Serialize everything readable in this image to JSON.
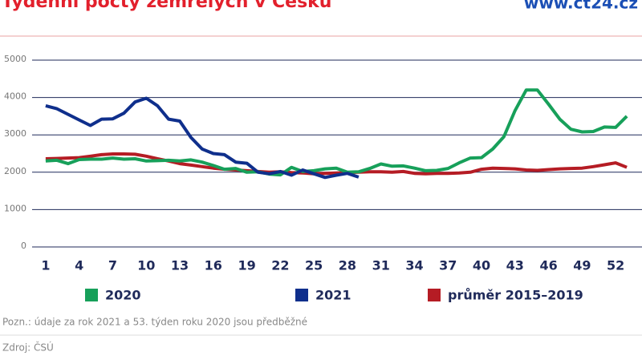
{
  "chart_data": {
    "type": "line",
    "title": "Týdenní počty zemřelých v Česku",
    "source_site": "www.ct24.cz",
    "note": "Pozn.: údaje za rok 2021 a 53. týden roku 2020 jsou předběžné",
    "source": "Zdroj: ČSÚ",
    "x": [
      1,
      2,
      3,
      4,
      5,
      6,
      7,
      8,
      9,
      10,
      11,
      12,
      13,
      14,
      15,
      16,
      17,
      18,
      19,
      20,
      21,
      22,
      23,
      24,
      25,
      26,
      27,
      28,
      29,
      30,
      31,
      32,
      33,
      34,
      35,
      36,
      37,
      38,
      39,
      40,
      41,
      42,
      43,
      44,
      45,
      46,
      47,
      48,
      49,
      50,
      51,
      52,
      53
    ],
    "xlim": [
      0,
      54
    ],
    "xticks": [
      1,
      4,
      7,
      10,
      13,
      16,
      19,
      22,
      25,
      28,
      31,
      34,
      37,
      40,
      43,
      46,
      49,
      52
    ],
    "ylim": [
      0,
      5000
    ],
    "yticks": [
      0,
      1000,
      2000,
      3000,
      4000,
      5000
    ],
    "grid": true,
    "series": [
      {
        "name": "2020",
        "color": "#17a05a",
        "values": [
          2300,
          2320,
          2230,
          2340,
          2350,
          2350,
          2380,
          2350,
          2360,
          2300,
          2310,
          2320,
          2300,
          2330,
          2270,
          2180,
          2080,
          2100,
          2000,
          2010,
          1950,
          1930,
          2130,
          2020,
          2040,
          2090,
          2110,
          2000,
          2010,
          2100,
          2220,
          2160,
          2170,
          2110,
          2040,
          2050,
          2100,
          2250,
          2380,
          2390,
          2620,
          2950,
          3650,
          4200,
          4200,
          3820,
          3420,
          3150,
          3080,
          3090,
          3210,
          3200,
          3500
        ]
      },
      {
        "name": "2021",
        "color": "#0f2f8c",
        "values": [
          3780,
          3700,
          3550,
          3400,
          3250,
          3420,
          3430,
          3580,
          3880,
          3980,
          3780,
          3420,
          3370,
          2930,
          2620,
          2500,
          2470,
          2270,
          2240,
          2000,
          1960,
          2020,
          1920,
          2060,
          1960,
          1860,
          1920,
          1970,
          1870,
          null,
          null,
          null,
          null,
          null,
          null,
          null,
          null,
          null,
          null,
          null,
          null,
          null,
          null,
          null,
          null,
          null,
          null,
          null,
          null,
          null,
          null,
          null,
          null
        ]
      },
      {
        "name": "průměr 2015–2019",
        "color": "#b51c24",
        "values": [
          2360,
          2370,
          2380,
          2390,
          2430,
          2470,
          2490,
          2490,
          2480,
          2430,
          2360,
          2300,
          2230,
          2190,
          2150,
          2110,
          2080,
          2060,
          2040,
          2020,
          2000,
          2010,
          1990,
          1980,
          1960,
          1970,
          1980,
          1990,
          2000,
          2010,
          2010,
          2000,
          2020,
          1970,
          1960,
          1970,
          1970,
          1980,
          2000,
          2080,
          2110,
          2100,
          2090,
          2060,
          2050,
          2070,
          2090,
          2100,
          2110,
          2150,
          2200,
          2250,
          2130
        ]
      }
    ]
  }
}
